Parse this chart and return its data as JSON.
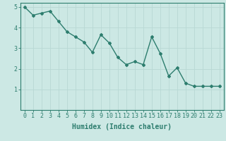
{
  "x": [
    0,
    1,
    2,
    3,
    4,
    5,
    6,
    7,
    8,
    9,
    10,
    11,
    12,
    13,
    14,
    15,
    16,
    17,
    18,
    19,
    20,
    21,
    22,
    23
  ],
  "y": [
    5.0,
    4.6,
    4.7,
    4.8,
    4.3,
    3.8,
    3.55,
    3.3,
    2.8,
    3.65,
    3.25,
    2.55,
    2.2,
    2.35,
    2.2,
    3.55,
    2.75,
    1.65,
    2.05,
    1.3,
    1.15,
    1.15,
    1.15,
    1.15
  ],
  "xlabel": "Humidex (Indice chaleur)",
  "ylim": [
    0,
    5.2
  ],
  "xlim": [
    -0.5,
    23.5
  ],
  "line_color": "#2d7d6e",
  "bg_color": "#cce8e4",
  "grid_color": "#b8d8d4",
  "xlabel_fontsize": 7,
  "tick_fontsize": 6,
  "marker": "D",
  "marker_size": 2.0,
  "line_width": 1.0
}
